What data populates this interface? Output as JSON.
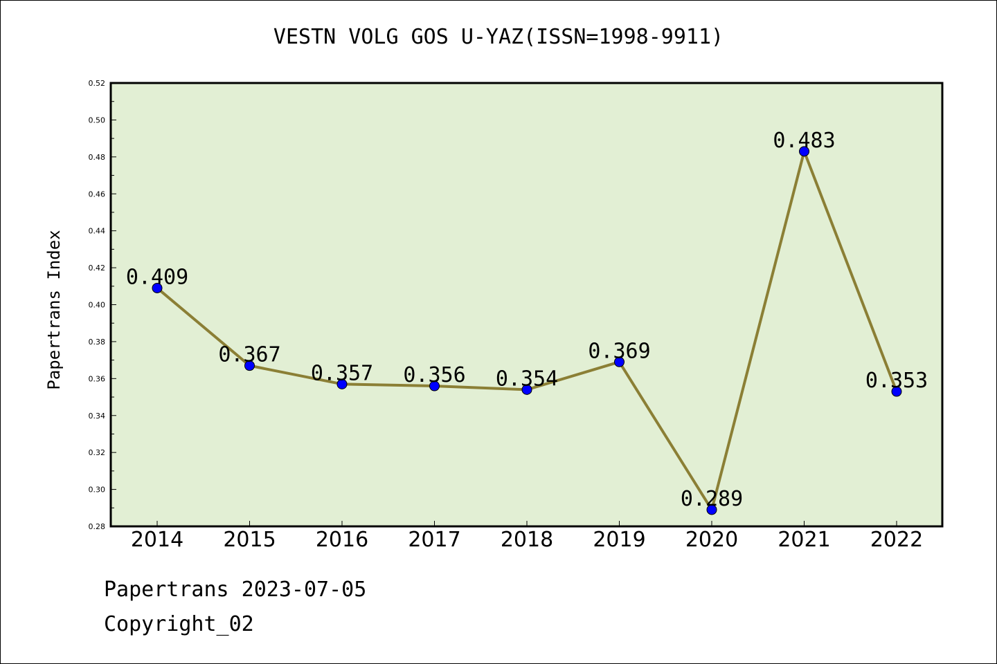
{
  "title": "VESTN VOLG GOS U-YAZ(ISSN=1998-9911)",
  "footer": {
    "line1": "Papertrans 2023-07-05",
    "line2": "Copyright_02"
  },
  "colors": {
    "plot_bg": "#e2efd4",
    "line": "#8b7f35",
    "marker": "#0000ff",
    "axis": "#000000"
  },
  "chart_data": {
    "type": "line",
    "title": "VESTN VOLG GOS U-YAZ(ISSN=1998-9911)",
    "xlabel": "",
    "ylabel": "Papertrans Index",
    "categories": [
      "2014",
      "2015",
      "2016",
      "2017",
      "2018",
      "2019",
      "2020",
      "2021",
      "2022"
    ],
    "values": [
      0.409,
      0.367,
      0.357,
      0.356,
      0.354,
      0.369,
      0.289,
      0.483,
      0.353
    ],
    "data_labels": [
      "0.409",
      "0.367",
      "0.357",
      "0.356",
      "0.354",
      "0.369",
      "0.289",
      "0.483",
      "0.353"
    ],
    "ylim": [
      0.28,
      0.52
    ],
    "yticks": [
      "0.28",
      "0.30",
      "0.32",
      "0.34",
      "0.36",
      "0.38",
      "0.40",
      "0.42",
      "0.44",
      "0.46",
      "0.48",
      "0.50",
      "0.52"
    ],
    "grid": false,
    "legend": "none"
  }
}
